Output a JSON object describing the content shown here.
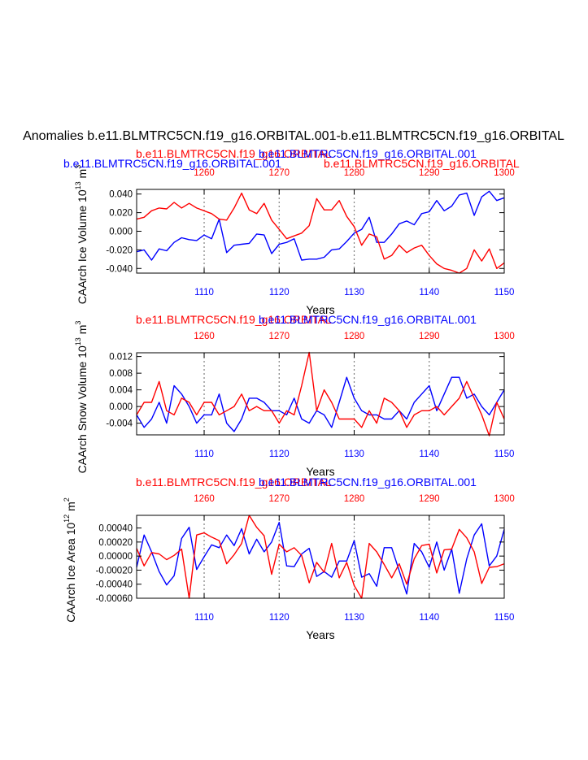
{
  "colors": {
    "blue": "#0000ff",
    "red": "#ff0000",
    "black": "#000000",
    "grid": "#808080"
  },
  "main_title": "Anomalies b.e11.BLMTRC5CN.f19_g16.ORBITAL.001-b.e11.BLMTRC5CN.f19_g16.ORBITAL",
  "chart_data": [
    {
      "type": "line",
      "panel": "ice-volume",
      "title_blue": "b.e11.BLMTRC5CN.f19_g16.ORBITAL.001",
      "title_red": "b.e11.BLMTRC5CN.f19_g16.ORBITAL",
      "top_title_red": "b.e11.BLMTRC5CN.f19_g16.ORBITAL",
      "top_title_blue": "b.e11.BLMTRC5CN.f19_g16.ORBITAL.001",
      "ylabel_main": "CAArch Ice Volume 10",
      "ylabel_exp": "13",
      "ylabel_unit": " m",
      "ylabel_unit_exp": "3",
      "xlabel": "Years",
      "xlim": [
        1101,
        1150
      ],
      "xlim_top": [
        1251,
        1300
      ],
      "ylim": [
        -0.045,
        0.045
      ],
      "x_ticks": [
        1110,
        1120,
        1130,
        1140,
        1150
      ],
      "x_tick_labels": [
        "1110",
        "1120",
        "1130",
        "1140",
        "1150"
      ],
      "top_ticks": [
        1260,
        1270,
        1280,
        1290,
        1300
      ],
      "top_tick_labels": [
        "1260",
        "1270",
        "1280",
        "1290",
        "1300"
      ],
      "y_ticks": [
        -0.04,
        -0.02,
        0.0,
        0.02,
        0.04
      ],
      "y_tick_labels": [
        "-0.040",
        "-0.020",
        "0.000",
        "0.020",
        "0.040"
      ],
      "series": [
        {
          "name": "b.e11.BLMTRC5CN.f19_g16.ORBITAL.001",
          "color": "blue",
          "values": [
            -0.022,
            -0.02,
            -0.031,
            -0.019,
            -0.021,
            -0.012,
            -0.007,
            -0.009,
            -0.01,
            -0.004,
            -0.008,
            0.013,
            -0.023,
            -0.015,
            -0.014,
            -0.013,
            -0.003,
            -0.004,
            -0.024,
            -0.014,
            -0.012,
            -0.008,
            -0.031,
            -0.03,
            -0.03,
            -0.028,
            -0.02,
            -0.019,
            -0.011,
            -0.002,
            0.002,
            0.015,
            -0.012,
            -0.012,
            -0.003,
            0.008,
            0.011,
            0.007,
            0.019,
            0.021,
            0.033,
            0.022,
            0.027,
            0.039,
            0.041,
            0.017,
            0.037,
            0.043,
            0.033,
            0.036
          ]
        },
        {
          "name": "b.e11.BLMTRC5CN.f19_g16.ORBITAL",
          "color": "red",
          "values": [
            0.013,
            0.015,
            0.022,
            0.025,
            0.024,
            0.031,
            0.025,
            0.03,
            0.025,
            0.022,
            0.019,
            0.013,
            0.012,
            0.025,
            0.041,
            0.023,
            0.019,
            0.03,
            0.012,
            0.002,
            -0.008,
            -0.005,
            -0.002,
            0.006,
            0.035,
            0.023,
            0.023,
            0.033,
            0.016,
            0.005,
            -0.015,
            -0.003,
            -0.006,
            -0.03,
            -0.026,
            -0.015,
            -0.023,
            -0.018,
            -0.015,
            -0.026,
            -0.035,
            -0.04,
            -0.042,
            -0.045,
            -0.04,
            -0.02,
            -0.032,
            -0.019,
            -0.04,
            -0.034
          ]
        }
      ]
    },
    {
      "type": "line",
      "panel": "snow-volume",
      "title_red": "b.e11.BLMTRC5CN.f19_g16.ORBITAL",
      "title_blue": "b.e11.BLMTRC5CN.f19_g16.ORBITAL.001",
      "ylabel_main": "CAArch Snow Volume 10",
      "ylabel_exp": "13",
      "ylabel_unit": " m",
      "ylabel_unit_exp": "3",
      "xlabel": "Years",
      "xlim": [
        1101,
        1150
      ],
      "xlim_top": [
        1251,
        1300
      ],
      "ylim": [
        -0.0068,
        0.0129
      ],
      "x_ticks": [
        1110,
        1120,
        1130,
        1140,
        1150
      ],
      "x_tick_labels": [
        "1110",
        "1120",
        "1130",
        "1140",
        "1150"
      ],
      "top_ticks": [
        1260,
        1270,
        1280,
        1290,
        1300
      ],
      "top_tick_labels": [
        "1260",
        "1270",
        "1280",
        "1290",
        "1300"
      ],
      "y_ticks": [
        -0.004,
        0.0,
        0.004,
        0.008,
        0.012
      ],
      "y_tick_labels": [
        "-0.004",
        "0.000",
        "0.004",
        "0.008",
        "0.012"
      ],
      "series": [
        {
          "name": "b.e11.BLMTRC5CN.f19_g16.ORBITAL.001",
          "color": "blue",
          "values": [
            -0.002,
            -0.005,
            -0.003,
            0.001,
            -0.004,
            0.005,
            0.003,
            0.0,
            -0.004,
            -0.002,
            -0.002,
            0.003,
            -0.004,
            -0.006,
            -0.003,
            0.002,
            0.002,
            0.001,
            -0.001,
            -0.001,
            -0.002,
            0.002,
            -0.003,
            -0.004,
            -0.001,
            -0.002,
            -0.005,
            0.001,
            0.007,
            0.002,
            -0.001,
            -0.002,
            -0.002,
            -0.003,
            -0.003,
            -0.001,
            -0.003,
            0.001,
            0.003,
            0.005,
            -0.001,
            0.003,
            0.007,
            0.007,
            0.002,
            0.003,
            0.0,
            -0.002,
            0.001,
            0.004
          ]
        },
        {
          "name": "b.e11.BLMTRC5CN.f19_g16.ORBITAL",
          "color": "red",
          "values": [
            -0.002,
            0.001,
            0.001,
            0.006,
            -0.001,
            -0.002,
            0.002,
            0.001,
            -0.002,
            0.001,
            0.001,
            -0.002,
            -0.001,
            0.0,
            0.003,
            -0.001,
            0.0,
            -0.001,
            -0.001,
            -0.004,
            -0.001,
            -0.002,
            0.005,
            0.013,
            -0.001,
            0.004,
            0.001,
            -0.003,
            -0.003,
            -0.003,
            -0.005,
            -0.001,
            -0.004,
            0.002,
            0.001,
            -0.001,
            -0.005,
            -0.002,
            -0.001,
            -0.001,
            0.0,
            -0.002,
            0.0,
            0.002,
            0.006,
            0.002,
            -0.002,
            -0.007,
            0.001,
            -0.003
          ]
        }
      ]
    },
    {
      "type": "line",
      "panel": "ice-area",
      "title_red": "b.e11.BLMTRC5CN.f19_g16.ORBITAL",
      "title_blue": "b.e11.BLMTRC5CN.f19_g16.ORBITAL.001",
      "ylabel_main": "CAArch Ice Area 10",
      "ylabel_exp": "12",
      "ylabel_unit": " m",
      "ylabel_unit_exp": "2",
      "xlabel": "Years",
      "xlim": [
        1101,
        1150
      ],
      "xlim_top": [
        1251,
        1300
      ],
      "ylim": [
        -0.0006,
        0.00058
      ],
      "x_ticks": [
        1110,
        1120,
        1130,
        1140,
        1150
      ],
      "x_tick_labels": [
        "1110",
        "1120",
        "1130",
        "1140",
        "1150"
      ],
      "top_ticks": [
        1260,
        1270,
        1280,
        1290,
        1300
      ],
      "top_tick_labels": [
        "1260",
        "1270",
        "1280",
        "1290",
        "1300"
      ],
      "y_ticks": [
        -0.0006,
        -0.0004,
        -0.0002,
        0.0,
        0.0002,
        0.0004
      ],
      "y_tick_labels": [
        "-0.00060",
        "-0.00040",
        "-0.00020",
        "0.00000",
        "0.00020",
        "0.00040"
      ],
      "series": [
        {
          "name": "b.e11.BLMTRC5CN.f19_g16.ORBITAL.001",
          "color": "blue",
          "values": [
            -0.00016,
            0.0003,
            6e-05,
            -0.00022,
            -0.00041,
            -0.00028,
            0.00025,
            0.00041,
            -0.00019,
            -1e-05,
            0.00016,
            0.00012,
            0.0003,
            0.00015,
            0.00039,
            3e-05,
            0.00024,
            6e-05,
            0.0002,
            0.00048,
            -0.00014,
            -0.00015,
            3e-05,
            0.00011,
            -0.00029,
            -0.00022,
            -0.0003,
            -7e-05,
            -7e-05,
            0.00022,
            -0.0003,
            -0.00025,
            -0.00043,
            0.00012,
            0.00012,
            -0.00021,
            -0.00054,
            0.00018,
            6e-05,
            -0.00016,
            0.0002,
            -0.0002,
            0.0001,
            -0.00053,
            -4e-05,
            0.0003,
            0.00046,
            -0.00014,
            0.0,
            0.00038
          ]
        },
        {
          "name": "b.e11.BLMTRC5CN.f19_g16.ORBITAL",
          "color": "red",
          "values": [
            0.00011,
            -0.00014,
            5e-05,
            3e-05,
            -5e-05,
            1e-05,
            0.0001,
            -0.0006,
            0.0003,
            0.00033,
            0.00027,
            0.00022,
            -0.00011,
            2e-05,
            0.00018,
            0.00058,
            0.00041,
            0.00029,
            -0.00026,
            0.00017,
            6e-05,
            0.00012,
            1e-05,
            -0.00038,
            -9e-05,
            -0.00023,
            0.00018,
            -0.00031,
            -9e-05,
            -0.00042,
            -0.0006,
            0.00018,
            6e-05,
            -0.00012,
            -0.00031,
            -0.00011,
            -0.0004,
            -4e-05,
            0.00015,
            0.00017,
            -0.00024,
            9e-05,
            0.0001,
            0.00038,
            0.00026,
            6e-05,
            -0.00039,
            -0.00016,
            -0.00015,
            -0.00011
          ]
        }
      ]
    }
  ]
}
